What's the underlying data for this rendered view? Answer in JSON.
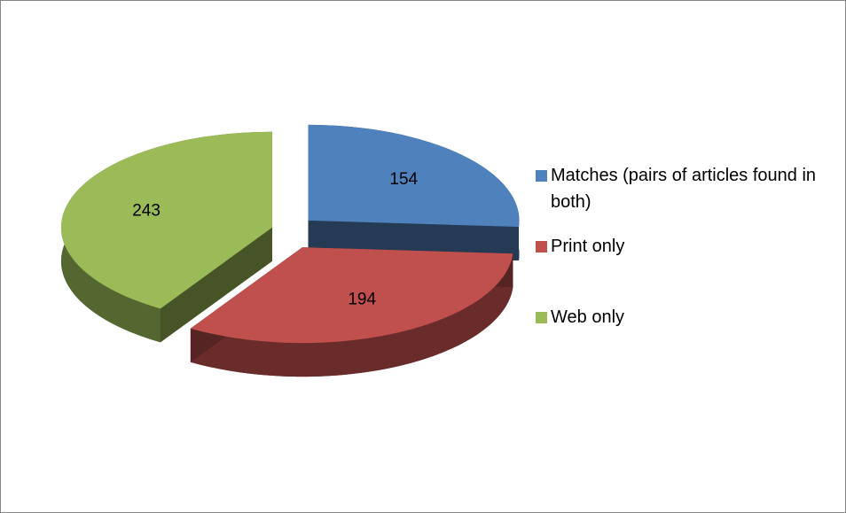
{
  "chart_data": {
    "type": "pie",
    "categories": [
      "Matches (pairs of articles found in both)",
      "Print only",
      "Web only"
    ],
    "values": [
      154,
      194,
      243
    ],
    "colors": [
      "#4f81bd",
      "#c0504d",
      "#9bbb59"
    ],
    "legend": "right"
  }
}
